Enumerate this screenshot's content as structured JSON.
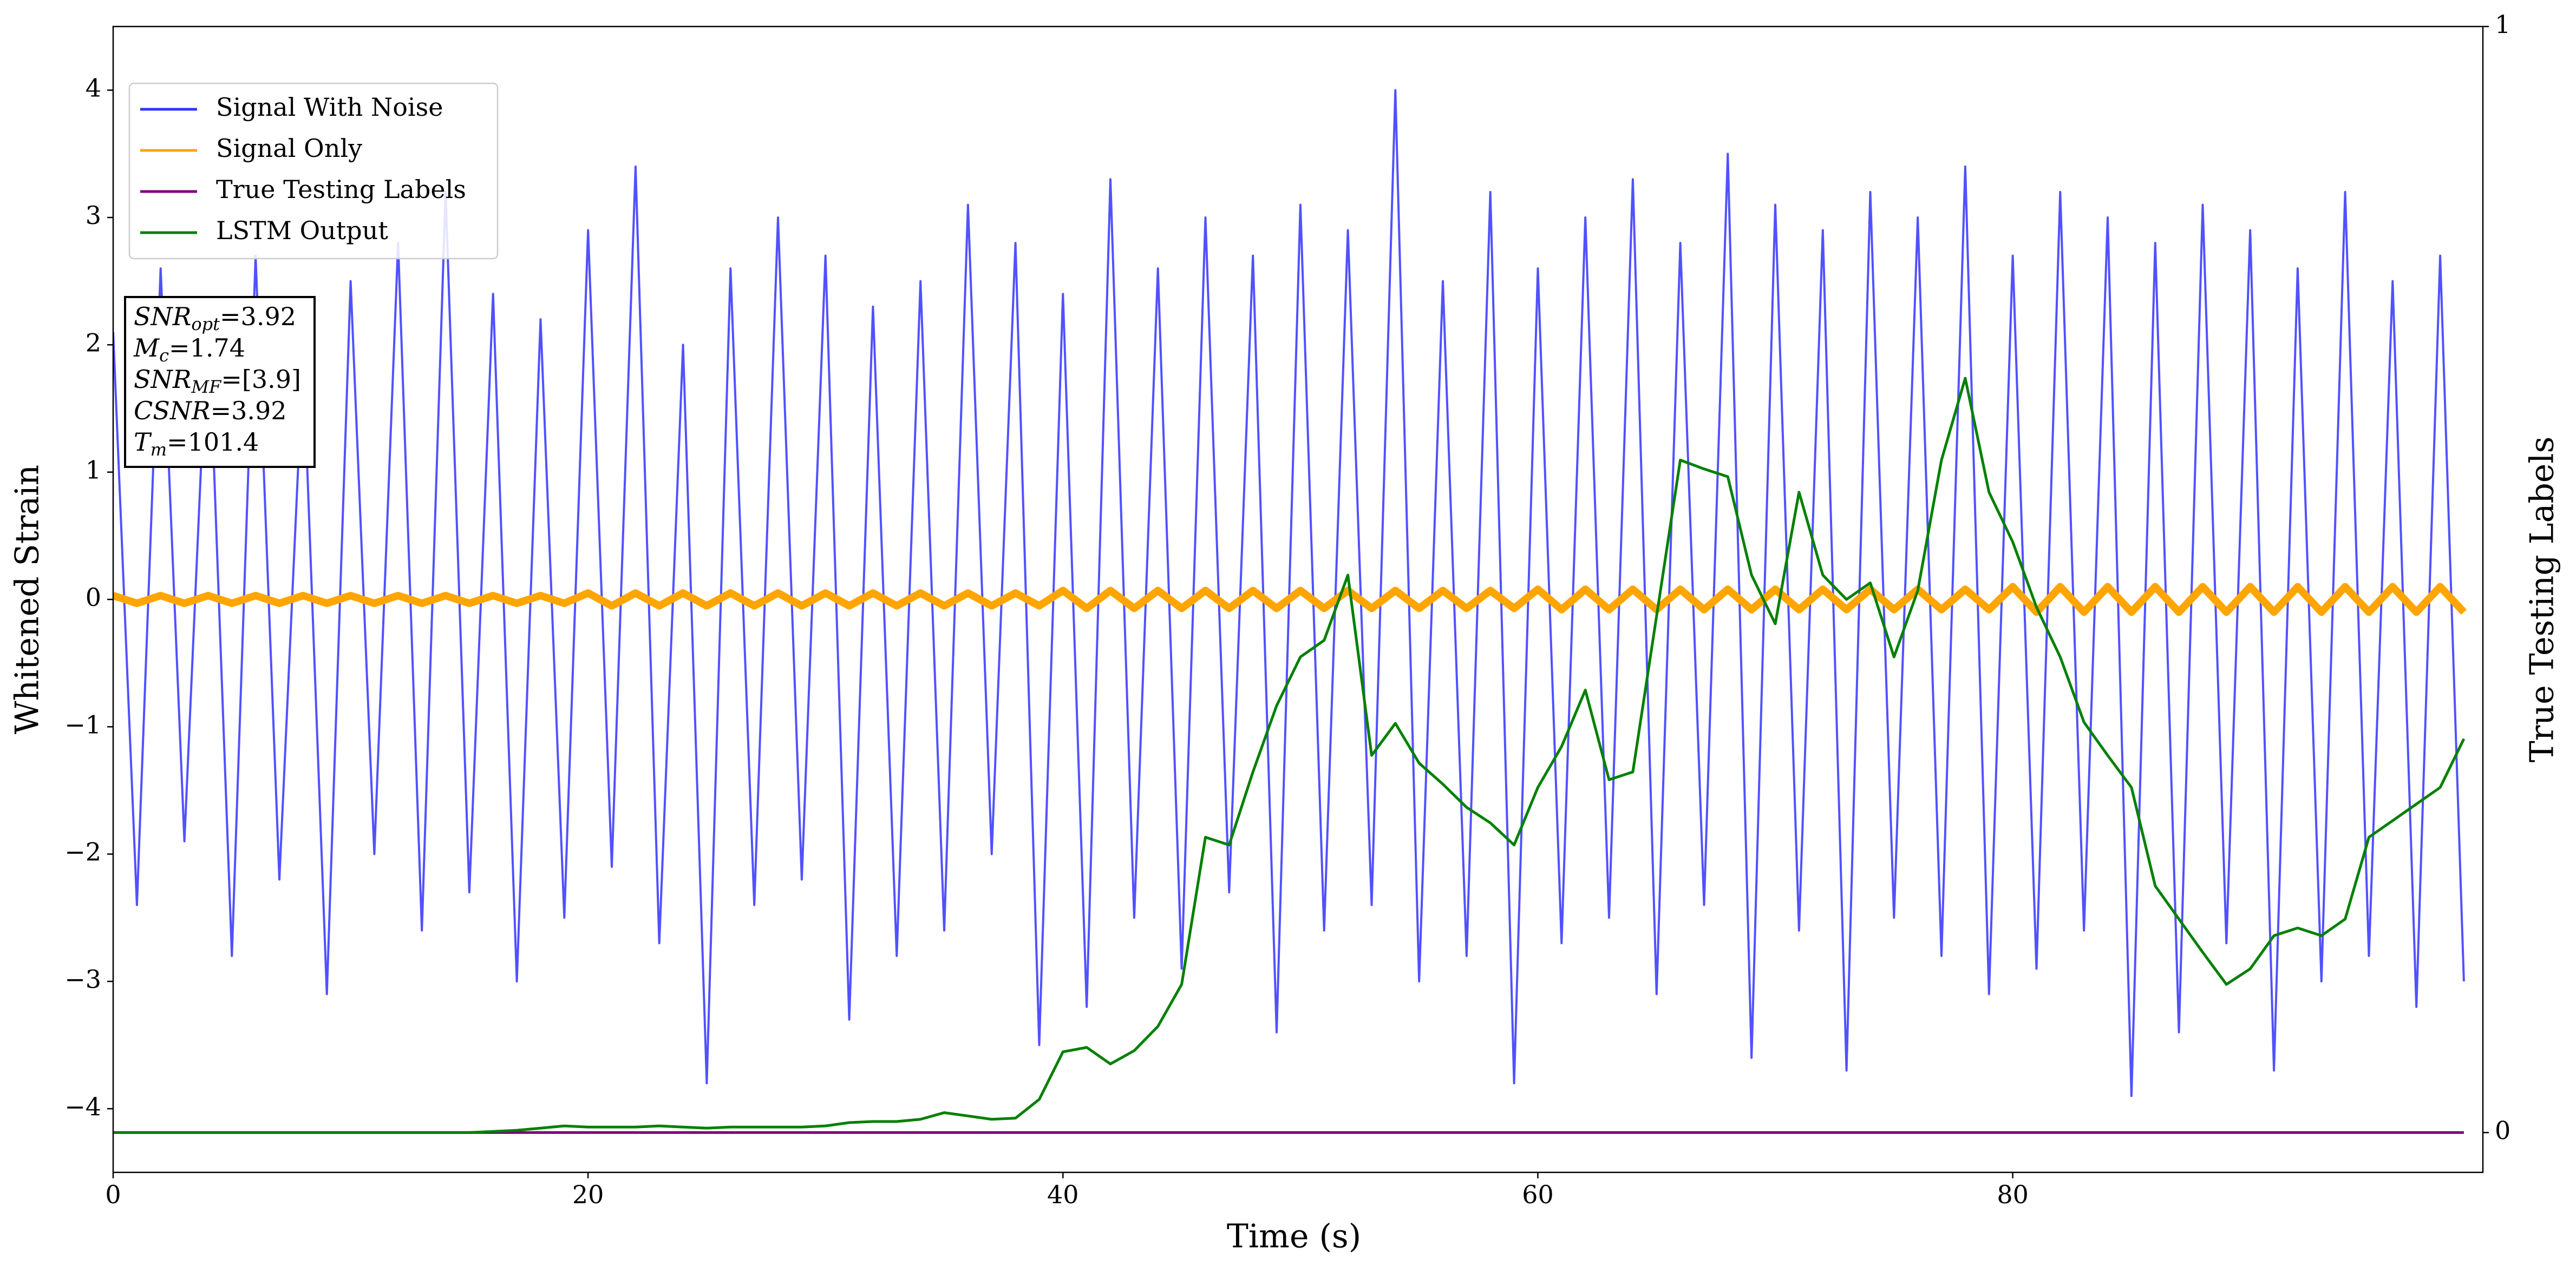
{
  "chart_data": {
    "type": "line",
    "xlabel": "Time (s)",
    "ylabel": "Whitened Strain",
    "y2label": "True Testing Labels",
    "xlim": [
      0,
      99.8
    ],
    "ylim": [
      -4.5,
      4.5
    ],
    "y2lim": [
      -0.036,
      1
    ],
    "xticks": [
      0,
      20,
      40,
      60,
      80
    ],
    "yticks": [
      {
        "value": -4,
        "label": "−4"
      },
      {
        "value": -3,
        "label": "−3"
      },
      {
        "value": -2,
        "label": "−2"
      },
      {
        "value": -1,
        "label": "−1"
      },
      0,
      1,
      2,
      3,
      4
    ],
    "y2ticks": [
      0,
      1
    ],
    "legend": "upper left",
    "x": [
      0,
      1,
      2,
      3,
      4,
      5,
      6,
      7,
      8,
      9,
      10,
      11,
      12,
      13,
      14,
      15,
      16,
      17,
      18,
      19,
      20,
      21,
      22,
      23,
      24,
      25,
      26,
      27,
      28,
      29,
      30,
      31,
      32,
      33,
      34,
      35,
      36,
      37,
      38,
      39,
      40,
      41,
      42,
      43,
      44,
      45,
      46,
      47,
      48,
      49,
      50,
      51,
      52,
      53,
      54,
      55,
      56,
      57,
      58,
      59,
      60,
      61,
      62,
      63,
      64,
      65,
      66,
      67,
      68,
      69,
      70,
      71,
      72,
      73,
      74,
      75,
      76,
      77,
      78,
      79,
      80,
      81,
      82,
      83,
      84,
      85,
      86,
      87,
      88,
      89,
      90,
      91,
      92,
      93,
      94,
      95,
      96,
      97,
      98,
      99
    ],
    "series": [
      {
        "name": "Signal With Noise",
        "color": "#3333ff",
        "values": [
          2.1,
          -2.4,
          2.6,
          -1.9,
          2.3,
          -2.8,
          2.7,
          -2.2,
          1.9,
          -3.1,
          2.5,
          -2.0,
          2.8,
          -2.6,
          3.2,
          -2.3,
          2.4,
          -3.0,
          2.2,
          -2.5,
          2.9,
          -2.1,
          3.4,
          -2.7,
          2.0,
          -3.8,
          2.6,
          -2.4,
          3.0,
          -2.2,
          2.7,
          -3.3,
          2.3,
          -2.8,
          2.5,
          -2.6,
          3.1,
          -2.0,
          2.8,
          -3.5,
          2.4,
          -3.2,
          3.3,
          -2.5,
          2.6,
          -2.9,
          3.0,
          -2.3,
          2.7,
          -3.4,
          3.1,
          -2.6,
          2.9,
          -2.4,
          4.0,
          -3.0,
          2.5,
          -2.8,
          3.2,
          -3.8,
          2.6,
          -2.7,
          3.0,
          -2.5,
          3.3,
          -3.1,
          2.8,
          -2.4,
          3.5,
          -3.6,
          3.1,
          -2.6,
          2.9,
          -3.7,
          3.2,
          -2.5,
          3.0,
          -2.8,
          3.4,
          -3.1,
          2.7,
          -2.9,
          3.2,
          -2.6,
          3.0,
          -3.9,
          2.8,
          -3.4,
          3.1,
          -2.7,
          2.9,
          -3.7,
          2.6,
          -3.0,
          3.2,
          -2.8,
          2.5,
          -3.2,
          2.7,
          -3.0
        ]
      },
      {
        "name": "Signal Only",
        "color": "#ffa500",
        "values": [
          0.03,
          -0.03,
          0.03,
          -0.03,
          0.03,
          -0.03,
          0.03,
          -0.03,
          0.03,
          -0.03,
          0.03,
          -0.03,
          0.03,
          -0.03,
          0.03,
          -0.03,
          0.03,
          -0.03,
          0.03,
          -0.03,
          0.05,
          -0.05,
          0.05,
          -0.05,
          0.05,
          -0.05,
          0.05,
          -0.05,
          0.05,
          -0.05,
          0.05,
          -0.05,
          0.05,
          -0.05,
          0.05,
          -0.05,
          0.05,
          -0.05,
          0.05,
          -0.05,
          0.07,
          -0.07,
          0.07,
          -0.07,
          0.07,
          -0.07,
          0.07,
          -0.07,
          0.07,
          -0.07,
          0.07,
          -0.07,
          0.07,
          -0.07,
          0.07,
          -0.07,
          0.07,
          -0.07,
          0.07,
          -0.07,
          0.08,
          -0.08,
          0.08,
          -0.08,
          0.08,
          -0.08,
          0.08,
          -0.08,
          0.08,
          -0.08,
          0.08,
          -0.08,
          0.08,
          -0.08,
          0.08,
          -0.08,
          0.08,
          -0.08,
          0.08,
          -0.08,
          0.1,
          -0.1,
          0.1,
          -0.1,
          0.1,
          -0.1,
          0.1,
          -0.1,
          0.1,
          -0.1,
          0.1,
          -0.1,
          0.1,
          -0.1,
          0.1,
          -0.1,
          0.1,
          -0.1,
          0.1,
          -0.1
        ]
      },
      {
        "name": "True Testing Labels",
        "color": "#800080",
        "axis": "y2",
        "values": [
          0,
          0,
          0,
          0,
          0,
          0,
          0,
          0,
          0,
          0,
          0,
          0,
          0,
          0,
          0,
          0,
          0,
          0,
          0,
          0,
          0,
          0,
          0,
          0,
          0,
          0,
          0,
          0,
          0,
          0,
          0,
          0,
          0,
          0,
          0,
          0,
          0,
          0,
          0,
          0,
          0,
          0,
          0,
          0,
          0,
          0,
          0,
          0,
          0,
          0,
          0,
          0,
          0,
          0,
          0,
          0,
          0,
          0,
          0,
          0,
          0,
          0,
          0,
          0,
          0,
          0,
          0,
          0,
          0,
          0,
          0,
          0,
          0,
          0,
          0,
          0,
          0,
          0,
          0,
          0,
          0,
          0,
          0,
          0,
          0,
          0,
          0,
          0,
          0,
          0,
          0,
          0,
          0,
          0,
          0,
          0,
          0,
          0,
          0,
          0
        ]
      },
      {
        "name": "LSTM Output",
        "color": "#008000",
        "axis": "y2",
        "values": [
          0,
          0,
          0,
          0,
          0,
          0,
          0,
          0,
          0,
          0,
          0,
          0,
          0,
          0,
          0,
          0,
          0.001,
          0.002,
          0.004,
          0.006,
          0.005,
          0.005,
          0.005,
          0.006,
          0.005,
          0.004,
          0.005,
          0.005,
          0.005,
          0.005,
          0.006,
          0.009,
          0.01,
          0.01,
          0.012,
          0.018,
          0.015,
          0.012,
          0.013,
          0.03,
          0.073,
          0.077,
          0.062,
          0.074,
          0.096,
          0.134,
          0.267,
          0.26,
          0.326,
          0.386,
          0.43,
          0.445,
          0.504,
          0.341,
          0.37,
          0.334,
          0.315,
          0.294,
          0.28,
          0.26,
          0.312,
          0.349,
          0.4,
          0.319,
          0.326,
          0.467,
          0.608,
          0.6,
          0.593,
          0.504,
          0.46,
          0.579,
          0.504,
          0.482,
          0.497,
          0.43,
          0.49,
          0.608,
          0.682,
          0.579,
          0.534,
          0.475,
          0.43,
          0.371,
          0.341,
          0.312,
          0.223,
          0.193,
          0.163,
          0.134,
          0.148,
          0.178,
          0.185,
          0.178,
          0.193,
          0.267,
          0.282,
          0.297,
          0.312,
          0.356
        ]
      }
    ],
    "annotations": [
      {
        "text": "SNR",
        "sub": "opt",
        "rest": "=3.92"
      },
      {
        "text": "M",
        "sub": "c",
        "rest": "=1.74"
      },
      {
        "text": "SNR",
        "sub": "MF",
        "rest": "=[3.9]"
      },
      {
        "text": "CSNR",
        "rest": "=3.92"
      },
      {
        "text": "T",
        "sub": "m",
        "rest": "=101.4"
      }
    ]
  }
}
